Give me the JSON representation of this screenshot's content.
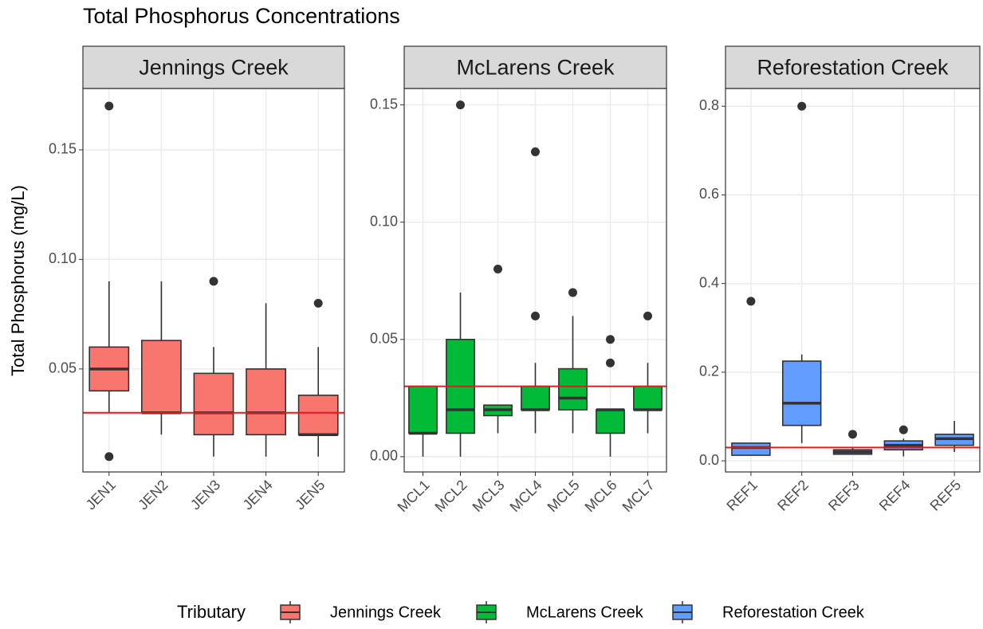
{
  "title": "Total Phosphorus Concentrations",
  "y_label": "Total Phosphorus (mg/L)",
  "legend": {
    "title": "Tributary"
  },
  "chart_data": [
    {
      "type": "box",
      "title": "Jennings Creek",
      "categories": [
        "JEN1",
        "JEN2",
        "JEN3",
        "JEN4",
        "JEN5"
      ],
      "series": [
        {
          "name": "Jennings Creek",
          "color": "#F8766D",
          "whisker_low": [
            0.03,
            0.02,
            0.01,
            0.01,
            0.01
          ],
          "q1": [
            0.04,
            0.03,
            0.02,
            0.02,
            0.02
          ],
          "median": [
            0.05,
            0.03,
            0.03,
            0.03,
            0.02
          ],
          "q3": [
            0.06,
            0.063,
            0.048,
            0.05,
            0.038
          ],
          "whisker_high": [
            0.09,
            0.09,
            0.06,
            0.08,
            0.06
          ],
          "outliers": [
            [
              0.17,
              0.01
            ],
            [],
            [
              0.09
            ],
            [],
            [
              0.08
            ]
          ]
        }
      ],
      "ylim": [
        0.003,
        0.178
      ],
      "yticks": [
        0.05,
        {
          "value": 0.1,
          "label": "0.10"
        },
        0.15
      ],
      "hline": 0.03,
      "hline_color": "#e31a1c",
      "grid": true
    },
    {
      "type": "box",
      "title": "McLarens Creek",
      "categories": [
        "MCL1",
        "MCL2",
        "MCL3",
        "MCL4",
        "MCL5",
        "MCL6",
        "MCL7"
      ],
      "series": [
        {
          "name": "McLarens Creek",
          "color": "#00BA38",
          "whisker_low": [
            0,
            0,
            0.01,
            0.01,
            0.01,
            0,
            0.01
          ],
          "q1": [
            0.01,
            0.01,
            0.0175,
            0.02,
            0.02,
            0.01,
            0.02
          ],
          "median": [
            0.01,
            0.02,
            0.02,
            0.02,
            0.025,
            0.02,
            0.02
          ],
          "q3": [
            0.03,
            0.05,
            0.022,
            0.03,
            0.0375,
            0.02,
            0.03
          ],
          "whisker_high": [
            0.03,
            0.07,
            0.022,
            0.04,
            0.06,
            0.02,
            0.04
          ],
          "outliers": [
            [],
            [
              0.15
            ],
            [
              0.08
            ],
            [
              0.06,
              0.13
            ],
            [
              0.07
            ],
            [
              0.04,
              0.05
            ],
            [
              0.06
            ]
          ]
        }
      ],
      "ylim": [
        -0.0065,
        0.157
      ],
      "yticks": [
        {
          "value": 0,
          "label": "0.00"
        },
        0.05,
        {
          "value": 0.1,
          "label": "0.10"
        },
        0.15
      ],
      "hline": 0.03,
      "hline_color": "#e31a1c",
      "grid": true
    },
    {
      "type": "box",
      "title": "Reforestation Creek",
      "categories": [
        "REF1",
        "REF2",
        "REF3",
        "REF4",
        "REF5"
      ],
      "series": [
        {
          "name": "Reforestation Creek",
          "color": "#619CFF",
          "whisker_low": [
            0.0126,
            0.04,
            0.015,
            0.01,
            0.02
          ],
          "q1": [
            0.0126,
            0.08,
            0.015,
            0.025,
            0.035
          ],
          "median": [
            0.03,
            0.13,
            0.02,
            0.035,
            0.05
          ],
          "q3": [
            0.04,
            0.225,
            0.025,
            0.045,
            0.06
          ],
          "whisker_high": [
            0.04,
            0.24,
            0.03,
            0.05,
            0.09
          ],
          "outliers": [
            [
              0.36
            ],
            [
              0.8
            ],
            [
              0.06
            ],
            [
              0.07
            ],
            []
          ]
        }
      ],
      "ylim": [
        -0.025,
        0.84
      ],
      "yticks": [
        {
          "value": 0,
          "label": "0.0"
        },
        0.2,
        0.4,
        0.6,
        0.8
      ],
      "hline": 0.03,
      "hline_color": "#e31a1c",
      "grid": true
    }
  ]
}
